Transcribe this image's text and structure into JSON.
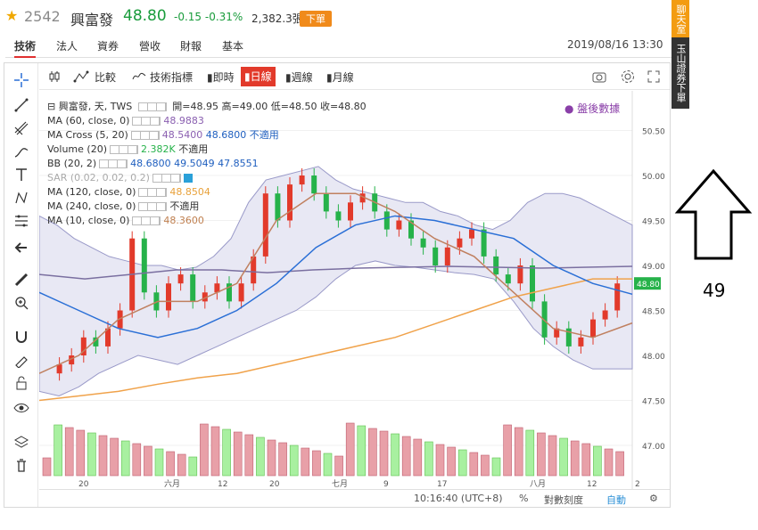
{
  "header": {
    "code": "2542",
    "name": "興富發",
    "price": "48.80",
    "change": "-0.15 -0.31%",
    "volume": "2,382.3張",
    "order_btn": "下單",
    "datetime": "2019/08/16 13:30"
  },
  "tabs": [
    "技術",
    "法人",
    "資券",
    "營收",
    "財報",
    "基本"
  ],
  "toolbar": {
    "compare": "比較",
    "indicators": "技術指標",
    "realtime": "即時",
    "daily": "日線",
    "weekly": "週線",
    "monthly": "月線"
  },
  "side_bar": {
    "chat": "聊天室",
    "broker": "玉山證券下單"
  },
  "annotation_number": "49",
  "legend": {
    "l0_name": "興富發, 天, TWS",
    "l0_o": "開=48.95",
    "l0_h": "高=49.00",
    "l0_l": "低=48.50",
    "l0_c": "收=48.80",
    "ma60": "MA (60, close, 0)",
    "ma60_v": "48.9883",
    "macross": "MA Cross (5, 20)",
    "macross_v1": "48.5400",
    "macross_v2": "48.6800",
    "macross_v3": "不適用",
    "vol": "Volume (20)",
    "vol_v1": "2.382K",
    "vol_v2": "不適用",
    "bb": "BB (20, 2)",
    "bb_v1": "48.6800",
    "bb_v2": "49.5049",
    "bb_v3": "47.8551",
    "sar": "SAR (0.02, 0.02, 0.2)",
    "ma120": "MA (120, close, 0)",
    "ma120_v": "48.8504",
    "ma240": "MA (240, close, 0)",
    "ma240_v": "不適用",
    "ma10": "MA (10, close, 0)",
    "ma10_v": "48.3600"
  },
  "after_hours": "盤後數據",
  "status": {
    "time": "10:16:40 (UTC+8)",
    "pct": "%",
    "log": "對數刻度",
    "auto": "自動"
  },
  "colors": {
    "up": "#e23a2b",
    "down": "#26b24a",
    "ma_blue": "#2a6fd6",
    "ma_orange": "#f0a24a",
    "ma_tan": "#c08060",
    "ma_purple": "#7a6fa0",
    "bb_fill": "#e8e8f4"
  },
  "chart_data": {
    "type": "candlestick",
    "y_axis_ticks": [
      "50.50",
      "50.00",
      "49.50",
      "49.00",
      "48.50",
      "48.00",
      "47.50",
      "47.00"
    ],
    "last_price_label": "48.80",
    "x_axis_ticks": [
      "20",
      "六月",
      "12",
      "20",
      "七月",
      "9",
      "17",
      "八月",
      "12",
      "2"
    ]
  }
}
